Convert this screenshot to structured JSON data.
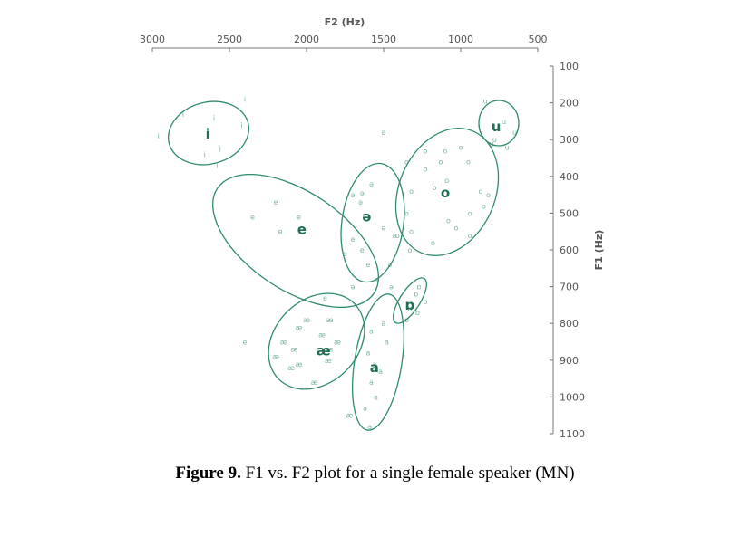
{
  "caption": {
    "label": "Figure 9.",
    "text": " F1 vs. F2 plot for a single female speaker (MN)"
  },
  "chart_data": {
    "type": "scatter",
    "xlabel": "F2 (Hz)",
    "ylabel": "F1 (Hz)",
    "xlim": [
      3000,
      500
    ],
    "ylim": [
      1100,
      100
    ],
    "x_axis_position": "top",
    "y_axis_position": "right",
    "x_reversed": true,
    "y_reversed": true,
    "grid": false,
    "x_ticks": [
      3000,
      2500,
      2000,
      1500,
      1000,
      500
    ],
    "y_ticks": [
      100,
      200,
      300,
      400,
      500,
      600,
      700,
      800,
      900,
      1000,
      1100
    ],
    "colors": {
      "ellipse": "#2e8b6b",
      "label": "#1f6e55",
      "token": "#7fb4a2",
      "axis": "#777777"
    },
    "vowels": [
      {
        "label": "i",
        "f2": 2640,
        "f1": 285,
        "tokens": [
          [
            2400,
            190
          ],
          [
            2420,
            260
          ],
          [
            2800,
            230
          ],
          [
            2600,
            240
          ],
          [
            2660,
            340
          ],
          [
            2580,
            370
          ],
          [
            2960,
            290
          ],
          [
            2560,
            325
          ]
        ]
      },
      {
        "label": "u",
        "f2": 770,
        "f1": 265,
        "tokens": [
          [
            840,
            195
          ],
          [
            780,
            300
          ],
          [
            650,
            280
          ],
          [
            700,
            320
          ],
          [
            720,
            250
          ],
          [
            800,
            310
          ]
        ]
      },
      {
        "label": "e",
        "f2": 2030,
        "f1": 545,
        "tokens": [
          [
            2200,
            470
          ],
          [
            2050,
            510
          ],
          [
            2170,
            550
          ],
          [
            2350,
            510
          ],
          [
            1600,
            640
          ],
          [
            1640,
            600
          ],
          [
            1700,
            570
          ],
          [
            1750,
            610
          ],
          [
            2400,
            850
          ],
          [
            1880,
            730
          ]
        ]
      },
      {
        "label": "ə",
        "f2": 1610,
        "f1": 510,
        "tokens": [
          [
            1500,
            280
          ],
          [
            1580,
            420
          ],
          [
            1640,
            445
          ],
          [
            1700,
            450
          ],
          [
            1650,
            470
          ],
          [
            1500,
            540
          ],
          [
            1430,
            560
          ],
          [
            1460,
            640
          ],
          [
            1540,
            680
          ],
          [
            1700,
            700
          ],
          [
            1450,
            700
          ]
        ]
      },
      {
        "label": "o",
        "f2": 1100,
        "f1": 445,
        "tokens": [
          [
            1350,
            360
          ],
          [
            1230,
            330
          ],
          [
            1100,
            330
          ],
          [
            1000,
            320
          ],
          [
            950,
            360
          ],
          [
            1130,
            360
          ],
          [
            1230,
            380
          ],
          [
            1170,
            430
          ],
          [
            1090,
            410
          ],
          [
            1320,
            440
          ],
          [
            1350,
            500
          ],
          [
            1080,
            520
          ],
          [
            1030,
            540
          ],
          [
            1320,
            550
          ],
          [
            1410,
            560
          ],
          [
            1180,
            580
          ],
          [
            1330,
            600
          ],
          [
            940,
            560
          ],
          [
            820,
            450
          ],
          [
            850,
            480
          ],
          [
            870,
            440
          ],
          [
            940,
            500
          ]
        ]
      },
      {
        "label": "ɒ",
        "f2": 1330,
        "f1": 750,
        "tokens": [
          [
            1290,
            720
          ],
          [
            1230,
            740
          ],
          [
            1330,
            760
          ],
          [
            1350,
            790
          ],
          [
            1280,
            770
          ],
          [
            1270,
            700
          ]
        ]
      },
      {
        "label": "æ",
        "f2": 1890,
        "f1": 875,
        "tokens": [
          [
            2000,
            790
          ],
          [
            2050,
            810
          ],
          [
            1850,
            790
          ],
          [
            1900,
            830
          ],
          [
            2150,
            850
          ],
          [
            2080,
            870
          ],
          [
            1800,
            850
          ],
          [
            1850,
            870
          ],
          [
            1860,
            900
          ],
          [
            2050,
            910
          ],
          [
            2100,
            920
          ],
          [
            2200,
            890
          ],
          [
            1950,
            960
          ],
          [
            1720,
            1050
          ]
        ]
      },
      {
        "label": "a",
        "f2": 1560,
        "f1": 920,
        "tokens": [
          [
            1580,
            820
          ],
          [
            1480,
            850
          ],
          [
            1600,
            880
          ],
          [
            1560,
            910
          ],
          [
            1520,
            930
          ],
          [
            1580,
            960
          ],
          [
            1550,
            1000
          ],
          [
            1620,
            1030
          ],
          [
            1590,
            1080
          ],
          [
            1500,
            800
          ]
        ]
      }
    ]
  }
}
